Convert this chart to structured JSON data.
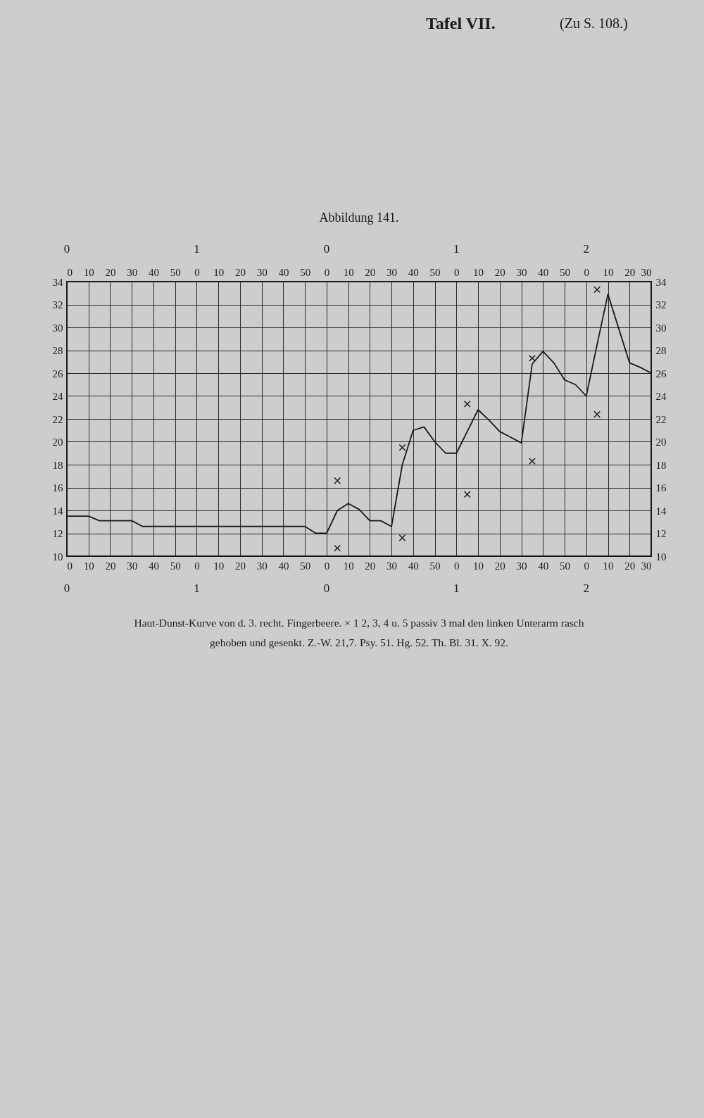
{
  "chart_data": {
    "type": "line",
    "title": "Abbildung 141.",
    "annotations": [
      "0",
      "1",
      "0",
      "1",
      "2",
      "0",
      "1",
      "0",
      "1",
      "2",
      "Haut-Dunst-Kurve von d. 3. recht. Fingerbeere. × 1 2, 3, 4 u. 5 passiv 3 mal den linken Unterarm rasch",
      "gehoben und gesenkt.   Z.-W. 21,7.   Psy. 51.   Hg. 52.   Th. Bl. 31. X. 92.",
      "Tafel VII.",
      "(Zu S. 108.)"
    ],
    "categories": [
      "0",
      null,
      "10",
      null,
      "20",
      null,
      "30",
      null,
      "40",
      null,
      "50",
      null,
      "0",
      null,
      "10",
      null,
      "20",
      null,
      "30",
      null,
      "40",
      null,
      "50",
      null,
      "0",
      null,
      "10",
      null,
      "20",
      null,
      "30",
      null,
      "40",
      null,
      "50",
      null,
      "0",
      null,
      "10",
      null,
      "20",
      null,
      "30",
      null,
      "40",
      null,
      "50",
      null,
      "0",
      null,
      "10",
      null,
      "20",
      null,
      "30"
    ],
    "series": [
      {
        "color": "#1a1a1a",
        "values": [
          13.5,
          13.5,
          13.5,
          13.1,
          13.1,
          13.1,
          13.1,
          12.6,
          12.6,
          12.6,
          12.6,
          12.6,
          12.6,
          12.6,
          12.6,
          12.6,
          12.6,
          12.6,
          12.6,
          12.6,
          12.6,
          12.6,
          12.6,
          12.0,
          12.0,
          14.0,
          14.6,
          14.1,
          13.1,
          13.1,
          12.6,
          18.0,
          21.0,
          21.3,
          20.0,
          19.0,
          19.0,
          20.9,
          22.8,
          21.9,
          20.9,
          20.4,
          19.9,
          26.8,
          27.9,
          26.9,
          25.4,
          25.0,
          24.0,
          28.5,
          32.9,
          29.9,
          26.9,
          26.5,
          26.0
        ]
      },
      {
        "type": "scatter",
        "color": "#1a1a1a",
        "marker": "cross",
        "values": [
          null,
          null,
          null,
          null,
          null,
          null,
          null,
          null,
          null,
          null,
          null,
          null,
          null,
          null,
          null,
          null,
          null,
          null,
          null,
          null,
          null,
          null,
          null,
          null,
          null,
          16.6,
          null,
          null,
          null,
          null,
          null,
          19.5,
          null,
          null,
          null,
          null,
          null,
          23.3,
          null,
          null,
          null,
          null,
          null,
          27.3,
          null,
          null,
          null,
          null,
          null,
          33.3,
          null,
          null,
          null,
          null,
          null
        ]
      },
      {
        "type": "scatter",
        "color": "#1a1a1a",
        "marker": "cross",
        "values": [
          null,
          null,
          null,
          null,
          null,
          null,
          null,
          null,
          null,
          null,
          null,
          null,
          null,
          null,
          null,
          null,
          null,
          null,
          null,
          null,
          null,
          null,
          null,
          null,
          null,
          10.7,
          null,
          null,
          null,
          null,
          null,
          11.6,
          null,
          null,
          null,
          null,
          null,
          15.4,
          null,
          null,
          null,
          null,
          null,
          18.3,
          null,
          null,
          null,
          null,
          null,
          22.4,
          null,
          null,
          null,
          null,
          null
        ]
      }
    ],
    "ylim": [
      10,
      34
    ],
    "yticks": [
      10,
      12,
      14,
      16,
      18,
      20,
      22,
      24,
      26,
      28,
      30,
      32,
      34
    ],
    "y2lim": [
      10,
      34
    ],
    "y2ticks": [
      10,
      12,
      14,
      16,
      18,
      20,
      22,
      24,
      26,
      28,
      30,
      32,
      34
    ],
    "grid": true
  }
}
